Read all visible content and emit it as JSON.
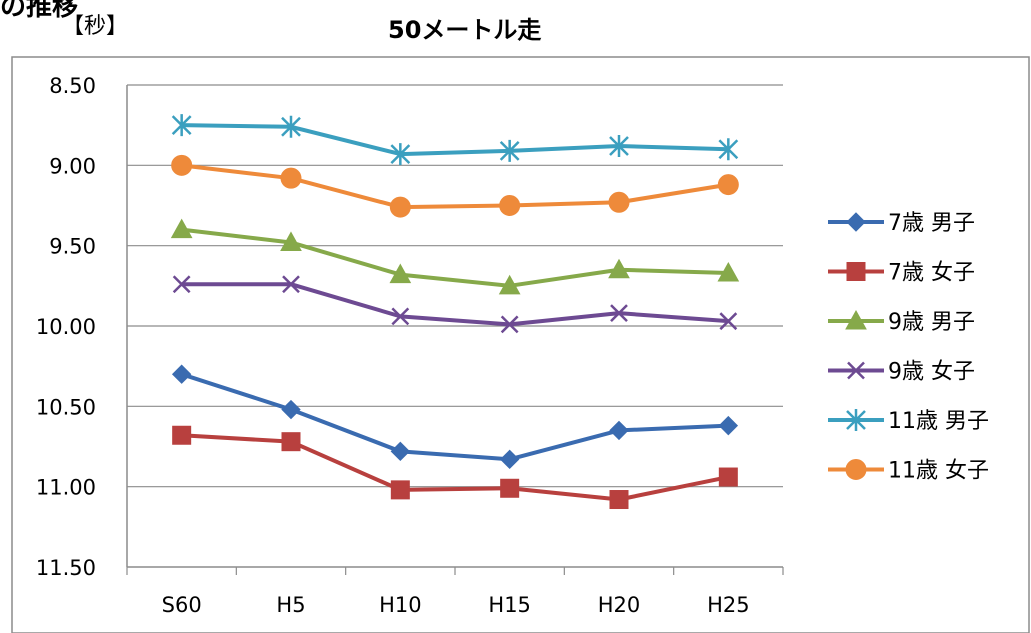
{
  "header": {
    "clipped_title": "の推移",
    "unit_label": "【秒】",
    "title": "50メートル走"
  },
  "chart_data": {
    "type": "line",
    "title": "50メートル走",
    "ylabel": "【秒】",
    "categories": [
      "S60",
      "H5",
      "H10",
      "H15",
      "H20",
      "H25"
    ],
    "y_ticks": [
      "8.50",
      "9.00",
      "9.50",
      "10.00",
      "10.50",
      "11.00",
      "11.50"
    ],
    "ylim": [
      8.5,
      11.5
    ],
    "y_inverted": true,
    "grid": "horizontal",
    "legend_position": "right",
    "series": [
      {
        "name": "7歳 男子",
        "color": "#3a6bb0",
        "marker": "diamond",
        "values": [
          10.3,
          10.52,
          10.78,
          10.83,
          10.65,
          10.62
        ]
      },
      {
        "name": "7歳 女子",
        "color": "#b8403e",
        "marker": "square",
        "values": [
          10.68,
          10.72,
          11.02,
          11.01,
          11.08,
          10.94
        ]
      },
      {
        "name": "9歳 男子",
        "color": "#86a94a",
        "marker": "triangle",
        "values": [
          9.4,
          9.48,
          9.68,
          9.75,
          9.65,
          9.67
        ]
      },
      {
        "name": "9歳 女子",
        "color": "#6d4a92",
        "marker": "x",
        "values": [
          9.74,
          9.74,
          9.94,
          9.99,
          9.92,
          9.97
        ]
      },
      {
        "name": "11歳 男子",
        "color": "#3b9fbf",
        "marker": "star",
        "values": [
          8.75,
          8.76,
          8.93,
          8.91,
          8.88,
          8.9
        ]
      },
      {
        "name": "11歳 女子",
        "color": "#ee8a3a",
        "marker": "circle",
        "values": [
          9.0,
          9.08,
          9.26,
          9.25,
          9.23,
          9.12
        ]
      }
    ]
  }
}
